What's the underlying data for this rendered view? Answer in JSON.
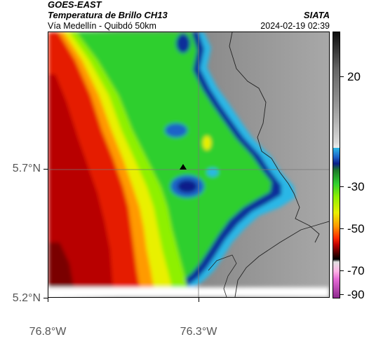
{
  "header": {
    "satellite": "GOES-EAST",
    "product": "Temperatura de Brillo CH13",
    "region": "Vía Medellín - Quibdó 50km",
    "organization": "SIATA",
    "timestamp": "2024-02-19 02:39"
  },
  "map": {
    "latitude_ticks": [
      "5.7°N",
      "5.2°N"
    ],
    "longitude_ticks": [
      "76.8°W",
      "76.3°W"
    ],
    "marker": "triangle-marker",
    "gridlines": true
  },
  "colorbar": {
    "labels": [
      "20",
      "-30",
      "-50",
      "-70",
      "-90"
    ],
    "colors": {
      "warm_gray": "#8a8a8a",
      "cyan": "#2bb7e6",
      "blue": "#0a1e8a",
      "green": "#2fcf2f",
      "yellow": "#e9f000",
      "orange": "#ff9a00",
      "red": "#c00000",
      "black": "#000000",
      "magenta": "#8e2a8e"
    }
  }
}
